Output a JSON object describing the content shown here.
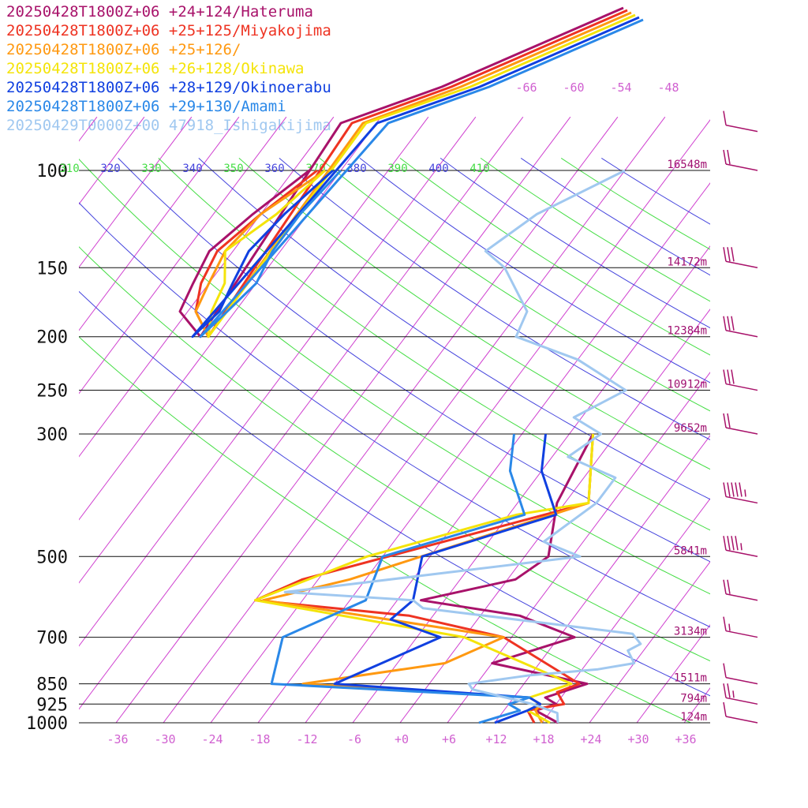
{
  "chart_data": {
    "type": "line",
    "title": "",
    "xlabel": "",
    "ylabel": "",
    "diagram": "skew-T log-p",
    "pressure_ticks": [
      100,
      150,
      200,
      250,
      300,
      500,
      700,
      850,
      925,
      1000
    ],
    "temperature_ticks": [
      "-36",
      "-30",
      "-24",
      "-18",
      "-12",
      "-6",
      "+0",
      "+6",
      "+12",
      "+18",
      "+24",
      "+30",
      "+36"
    ],
    "height_labels": [
      {
        "p": 100,
        "text": "16548m"
      },
      {
        "p": 150,
        "text": "14172m"
      },
      {
        "p": 200,
        "text": "12384m"
      },
      {
        "p": 250,
        "text": "10912m"
      },
      {
        "p": 300,
        "text": "9652m"
      },
      {
        "p": 500,
        "text": "5841m"
      },
      {
        "p": 700,
        "text": "3134m"
      },
      {
        "p": 850,
        "text": "1511m"
      },
      {
        "p": 925,
        "text": "794m"
      },
      {
        "p": 1000,
        "text": "124m"
      }
    ],
    "theta_labels": [
      {
        "text": "310",
        "color": "#44dd44"
      },
      {
        "text": "320",
        "color": "#4444dd"
      },
      {
        "text": "330",
        "color": "#44dd44"
      },
      {
        "text": "340",
        "color": "#4444dd"
      },
      {
        "text": "350",
        "color": "#44dd44"
      },
      {
        "text": "360",
        "color": "#4444dd"
      },
      {
        "text": "370",
        "color": "#44dd44"
      },
      {
        "text": "380",
        "color": "#4444dd"
      },
      {
        "text": "390",
        "color": "#44dd44"
      },
      {
        "text": "400",
        "color": "#4444dd"
      },
      {
        "text": "410",
        "color": "#44dd44"
      }
    ],
    "upper_temp_labels": [
      "-66",
      "-60",
      "-54",
      "-48"
    ],
    "series": [
      {
        "name": "20250428T1800Z+06 +24+124/Hateruma",
        "color": "#a8126a",
        "points": [
          [
            1000,
            20
          ],
          [
            950,
            16
          ],
          [
            925,
            18
          ],
          [
            900,
            16
          ],
          [
            850,
            20
          ],
          [
            780,
            6
          ],
          [
            700,
            14
          ],
          [
            640,
            5
          ],
          [
            600,
            -9
          ],
          [
            550,
            1
          ],
          [
            500,
            3
          ],
          [
            400,
            -1
          ],
          [
            300,
            -3
          ]
        ]
      },
      {
        "name": "20250428T1800Z+06 +25+125/Miyakojima",
        "color": "#ee3322",
        "points": [
          [
            1000,
            17
          ],
          [
            950,
            15
          ],
          [
            925,
            19
          ],
          [
            880,
            17
          ],
          [
            850,
            19
          ],
          [
            700,
            5
          ],
          [
            640,
            -9
          ],
          [
            600,
            -30
          ],
          [
            550,
            -26
          ],
          [
            400,
            3
          ],
          [
            300,
            -3
          ]
        ]
      },
      {
        "name": "20250428T1800Z+06 +25+126/",
        "color": "#ff9911",
        "points": [
          [
            1000,
            18
          ],
          [
            950,
            16
          ],
          [
            925,
            16
          ],
          [
            900,
            14
          ],
          [
            850,
            -16
          ],
          [
            780,
            0
          ],
          [
            700,
            5
          ],
          [
            600,
            -29
          ],
          [
            550,
            -20
          ],
          [
            400,
            3
          ],
          [
            300,
            -3
          ]
        ]
      },
      {
        "name": "20250428T1800Z+06 +26+128/Okinawa",
        "color": "#f4e40a",
        "points": [
          [
            1000,
            19
          ],
          [
            950,
            15
          ],
          [
            925,
            16
          ],
          [
            900,
            14
          ],
          [
            850,
            18
          ],
          [
            700,
            0
          ],
          [
            600,
            -30
          ],
          [
            500,
            -20
          ],
          [
            420,
            -5
          ],
          [
            400,
            3
          ],
          [
            300,
            -3
          ]
        ]
      },
      {
        "name": "20250428T1800Z+06 +28+129/Okinoerabu",
        "color": "#1040e0",
        "points": [
          [
            1000,
            12
          ],
          [
            950,
            15
          ],
          [
            925,
            16
          ],
          [
            900,
            14
          ],
          [
            850,
            -12
          ],
          [
            780,
            -8
          ],
          [
            700,
            -3
          ],
          [
            650,
            -11
          ],
          [
            600,
            -10
          ],
          [
            500,
            -13
          ],
          [
            420,
            0
          ],
          [
            350,
            -6
          ],
          [
            300,
            -9
          ]
        ]
      },
      {
        "name": "20250428T1800Z+06 +29+130/Amami",
        "color": "#2a88e8",
        "points": [
          [
            1000,
            10
          ],
          [
            950,
            14
          ],
          [
            925,
            12
          ],
          [
            900,
            14
          ],
          [
            850,
            -20
          ],
          [
            700,
            -23
          ],
          [
            600,
            -16
          ],
          [
            500,
            -18
          ],
          [
            420,
            -4
          ],
          [
            350,
            -10
          ],
          [
            300,
            -13
          ]
        ]
      },
      {
        "name": "20250429T0000Z+00 47918_Ishigakijima",
        "color": "#a0c8f0",
        "points": [
          [
            1000,
            20
          ],
          [
            960,
            19
          ],
          [
            925,
            15
          ],
          [
            900,
            11
          ],
          [
            870,
            6
          ],
          [
            850,
            5
          ],
          [
            820,
            12
          ],
          [
            800,
            20
          ],
          [
            780,
            24
          ],
          [
            740,
            22
          ],
          [
            720,
            23
          ],
          [
            690,
            21
          ],
          [
            620,
            -8
          ],
          [
            600,
            -10
          ],
          [
            580,
            -27
          ],
          [
            500,
            7
          ],
          [
            470,
            1
          ],
          [
            400,
            4
          ],
          [
            360,
            4
          ],
          [
            330,
            -4
          ],
          [
            300,
            -2
          ],
          [
            280,
            -7
          ],
          [
            250,
            -3
          ],
          [
            220,
            -12
          ],
          [
            200,
            -22
          ],
          [
            180,
            -23
          ],
          [
            150,
            -30
          ],
          [
            140,
            -34
          ],
          [
            120,
            -31
          ],
          [
            100,
            -24
          ]
        ]
      }
    ],
    "upper_profiles": [
      {
        "color": "#a8126a",
        "points": [
          [
            100,
            -64
          ],
          [
            120,
            -67
          ],
          [
            140,
            -69
          ],
          [
            160,
            -68
          ],
          [
            180,
            -67
          ],
          [
            200,
            -62
          ]
        ]
      },
      {
        "color": "#ee3322",
        "points": [
          [
            100,
            -63
          ],
          [
            120,
            -66
          ],
          [
            140,
            -68
          ],
          [
            160,
            -67
          ],
          [
            180,
            -65
          ],
          [
            200,
            -61
          ]
        ]
      },
      {
        "color": "#ff9911",
        "points": [
          [
            100,
            -62
          ],
          [
            120,
            -66
          ],
          [
            140,
            -67
          ],
          [
            160,
            -66
          ],
          [
            180,
            -65
          ],
          [
            200,
            -61
          ]
        ]
      },
      {
        "color": "#f4e40a",
        "points": [
          [
            100,
            -62
          ],
          [
            120,
            -64
          ],
          [
            140,
            -67
          ],
          [
            160,
            -64
          ],
          [
            180,
            -63
          ],
          [
            200,
            -61
          ]
        ]
      },
      {
        "color": "#1040e0",
        "points": [
          [
            100,
            -61
          ],
          [
            120,
            -63
          ],
          [
            140,
            -64
          ],
          [
            160,
            -63
          ],
          [
            180,
            -62
          ],
          [
            200,
            -63
          ]
        ]
      },
      {
        "color": "#2a88e8",
        "points": [
          [
            100,
            -60
          ],
          [
            120,
            -61
          ],
          [
            140,
            -61
          ],
          [
            160,
            -60
          ],
          [
            180,
            -61
          ],
          [
            200,
            -62
          ]
        ]
      }
    ],
    "wind_barbs": [
      {
        "p": 85,
        "speed": 10
      },
      {
        "p": 100,
        "speed": 20
      },
      {
        "p": 150,
        "speed": 30
      },
      {
        "p": 200,
        "speed": 30
      },
      {
        "p": 250,
        "speed": 30
      },
      {
        "p": 300,
        "speed": 20
      },
      {
        "p": 400,
        "speed": 45
      },
      {
        "p": 500,
        "speed": 35
      },
      {
        "p": 600,
        "speed": 20
      },
      {
        "p": 700,
        "speed": 5
      },
      {
        "p": 850,
        "speed": 10
      },
      {
        "p": 925,
        "speed": 15
      },
      {
        "p": 1000,
        "speed": 10
      }
    ]
  }
}
